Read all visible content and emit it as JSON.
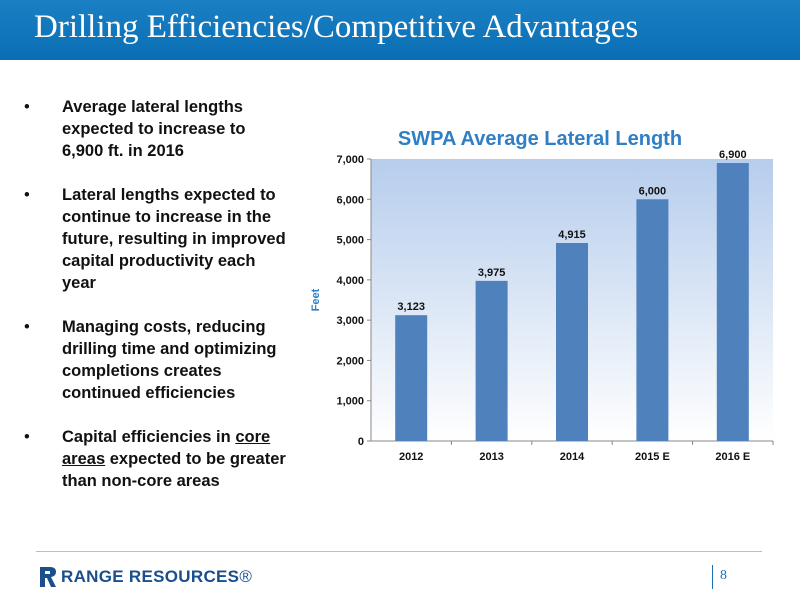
{
  "slide": {
    "title": "Drilling Efficiencies/Competitive Advantages",
    "page_number": "8"
  },
  "bullets": [
    {
      "marker": "•",
      "text": "Average lateral lengths expected to increase to 6,900 ft. in 2016"
    },
    {
      "marker": "•",
      "text": "Lateral lengths expected to continue to increase in the future, resulting in improved capital productivity each year"
    },
    {
      "marker": "•",
      "text": "Managing costs, reducing drilling time and optimizing completions creates continued efficiencies"
    },
    {
      "marker": "•",
      "text_before": "Capital efficiencies in ",
      "text_underlined": "core areas",
      "text_after": " expected to be greater than non-core areas"
    }
  ],
  "footer": {
    "logo_bold": "RANGE RESOURCES",
    "logo_mark": "®"
  },
  "colors": {
    "title_bar": "#0a6eb4",
    "bar_fill": "#4f81bd",
    "chart_title": "#2f7fc6",
    "footer_line": "#9cc6e6"
  },
  "chart_data": {
    "type": "bar",
    "title": "SWPA Average Lateral Length",
    "xlabel": "",
    "ylabel": "Feet",
    "categories": [
      "2012",
      "2013",
      "2014",
      "2015 E",
      "2016 E"
    ],
    "values": [
      3123,
      3975,
      4915,
      6000,
      6900
    ],
    "value_labels": [
      "3,123",
      "3,975",
      "4,915",
      "6,000",
      "6,900"
    ],
    "ylim": [
      0,
      7000
    ],
    "yticks": [
      0,
      1000,
      2000,
      3000,
      4000,
      5000,
      6000,
      7000
    ],
    "ytick_labels": [
      "0",
      "1,000",
      "2,000",
      "3,000",
      "4,000",
      "5,000",
      "6,000",
      "7,000"
    ],
    "grid": false,
    "legend": "none"
  }
}
